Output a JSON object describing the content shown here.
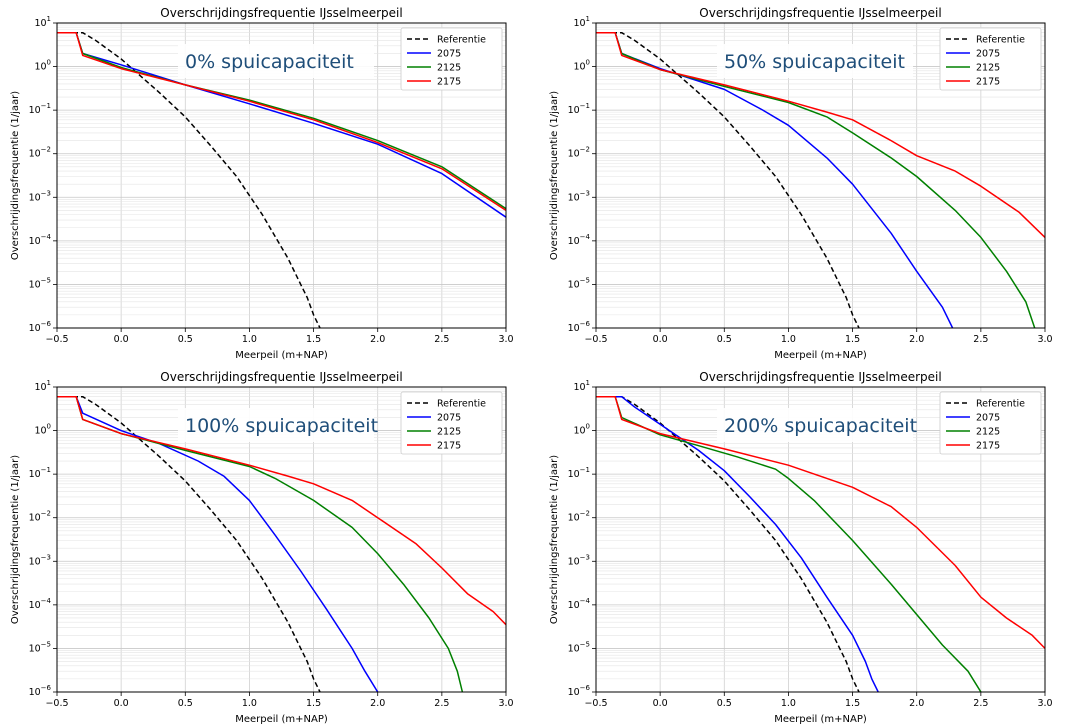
{
  "figure": {
    "panels": [
      {
        "annotation": "0% spuicapaciteit"
      },
      {
        "annotation": "50% spuicapaciteit"
      },
      {
        "annotation": "100% spuicapaciteit"
      },
      {
        "annotation": "200% spuicapaciteit"
      }
    ]
  },
  "chart_data": [
    {
      "type": "line",
      "title": "Overschrijdingsfrequentie IJsselmeerpeil",
      "xlabel": "Meerpeil (m+NAP)",
      "ylabel": "Overschrijdingsfrequentie (1/jaar)",
      "xlim": [
        -0.5,
        3.0
      ],
      "ylim": [
        1e-06,
        10
      ],
      "yscale": "log",
      "grid": true,
      "legend": "top-right",
      "annotation": "0% spuicapaciteit",
      "series": [
        {
          "name": "Referentie",
          "color": "#000000",
          "dash": "dashed",
          "x": [
            -0.5,
            -0.3,
            -0.2,
            0,
            0.3,
            0.5,
            0.7,
            0.9,
            1.1,
            1.3,
            1.4,
            1.45,
            1.5,
            1.55
          ],
          "y": [
            6,
            6,
            4,
            1.5,
            0.25,
            0.07,
            0.015,
            0.003,
            0.0004,
            4e-05,
            1e-05,
            5e-06,
            2e-06,
            1e-06
          ]
        },
        {
          "name": "2075",
          "color": "#0000ff",
          "dash": "solid",
          "x": [
            -0.5,
            -0.35,
            -0.3,
            0,
            0.5,
            1.0,
            1.5,
            2.0,
            2.5,
            3.0
          ],
          "y": [
            6,
            6,
            2,
            1.1,
            0.38,
            0.14,
            0.05,
            0.0165,
            0.0035,
            0.00035
          ]
        },
        {
          "name": "2125",
          "color": "#008000",
          "dash": "solid",
          "x": [
            -0.5,
            -0.35,
            -0.3,
            0,
            0.5,
            1.0,
            1.5,
            2.0,
            2.5,
            3.0
          ],
          "y": [
            6,
            6,
            2,
            0.95,
            0.38,
            0.17,
            0.065,
            0.02,
            0.005,
            0.00055
          ]
        },
        {
          "name": "2175",
          "color": "#ff0000",
          "dash": "solid",
          "x": [
            -0.5,
            -0.35,
            -0.3,
            0,
            0.5,
            1.0,
            1.5,
            2.0,
            2.5,
            3.0
          ],
          "y": [
            6,
            6,
            1.8,
            0.9,
            0.38,
            0.16,
            0.06,
            0.018,
            0.0045,
            0.0005
          ]
        }
      ]
    },
    {
      "type": "line",
      "title": "Overschrijdingsfrequentie IJsselmeerpeil",
      "xlabel": "Meerpeil (m+NAP)",
      "ylabel": "Overschrijdingsfrequentie (1/jaar)",
      "xlim": [
        -0.5,
        3.0
      ],
      "ylim": [
        1e-06,
        10
      ],
      "yscale": "log",
      "grid": true,
      "legend": "top-right",
      "annotation": "50% spuicapaciteit",
      "series": [
        {
          "name": "Referentie",
          "color": "#000000",
          "dash": "dashed",
          "x": [
            -0.5,
            -0.3,
            -0.2,
            0,
            0.3,
            0.5,
            0.7,
            0.9,
            1.1,
            1.3,
            1.4,
            1.45,
            1.5,
            1.55
          ],
          "y": [
            6,
            6,
            4,
            1.5,
            0.25,
            0.07,
            0.015,
            0.003,
            0.0004,
            4e-05,
            1e-05,
            5e-06,
            2e-06,
            1e-06
          ]
        },
        {
          "name": "2075",
          "color": "#0000ff",
          "dash": "solid",
          "x": [
            -0.5,
            -0.35,
            -0.3,
            0,
            0.5,
            0.8,
            1.0,
            1.3,
            1.5,
            1.8,
            2.0,
            2.2,
            2.28
          ],
          "y": [
            6,
            6,
            2,
            0.9,
            0.3,
            0.1,
            0.045,
            0.008,
            0.002,
            0.00015,
            2e-05,
            3e-06,
            1e-06
          ]
        },
        {
          "name": "2125",
          "color": "#008000",
          "dash": "solid",
          "x": [
            -0.5,
            -0.35,
            -0.3,
            0,
            0.5,
            1.0,
            1.3,
            1.5,
            1.8,
            2.0,
            2.3,
            2.5,
            2.7,
            2.85,
            2.92
          ],
          "y": [
            6,
            6,
            2,
            0.85,
            0.35,
            0.15,
            0.07,
            0.03,
            0.008,
            0.003,
            0.0005,
            0.00012,
            2e-05,
            4e-06,
            1e-06
          ]
        },
        {
          "name": "2175",
          "color": "#ff0000",
          "dash": "solid",
          "x": [
            -0.5,
            -0.35,
            -0.3,
            0,
            0.5,
            1.0,
            1.3,
            1.5,
            1.8,
            2.0,
            2.3,
            2.5,
            2.8,
            3.0
          ],
          "y": [
            6,
            6,
            1.8,
            0.85,
            0.38,
            0.16,
            0.09,
            0.06,
            0.02,
            0.009,
            0.004,
            0.0018,
            0.00045,
            0.00012
          ]
        }
      ]
    },
    {
      "type": "line",
      "title": "Overschrijdingsfrequentie IJsselmeerpeil",
      "xlabel": "Meerpeil (m+NAP)",
      "ylabel": "Overschrijdingsfrequentie (1/jaar)",
      "xlim": [
        -0.5,
        3.0
      ],
      "ylim": [
        1e-06,
        10
      ],
      "yscale": "log",
      "grid": true,
      "legend": "top-right",
      "annotation": "100% spuicapaciteit",
      "series": [
        {
          "name": "Referentie",
          "color": "#000000",
          "dash": "dashed",
          "x": [
            -0.5,
            -0.3,
            -0.2,
            0,
            0.3,
            0.5,
            0.7,
            0.9,
            1.1,
            1.3,
            1.4,
            1.45,
            1.5,
            1.55
          ],
          "y": [
            6,
            6,
            4,
            1.5,
            0.25,
            0.07,
            0.015,
            0.003,
            0.0004,
            4e-05,
            1e-05,
            5e-06,
            2e-06,
            1e-06
          ]
        },
        {
          "name": "2075",
          "color": "#0000ff",
          "dash": "solid",
          "x": [
            -0.5,
            -0.4,
            -0.35,
            -0.3,
            0,
            0.3,
            0.6,
            0.8,
            1.0,
            1.2,
            1.4,
            1.6,
            1.8,
            1.9,
            2.0
          ],
          "y": [
            6,
            6,
            6,
            2.5,
            1,
            0.5,
            0.2,
            0.09,
            0.025,
            0.004,
            0.0006,
            8e-05,
            1e-05,
            3e-06,
            1e-06
          ]
        },
        {
          "name": "2125",
          "color": "#008000",
          "dash": "solid",
          "x": [
            -0.5,
            -0.35,
            -0.3,
            0,
            0.5,
            1.0,
            1.2,
            1.5,
            1.8,
            2.0,
            2.2,
            2.4,
            2.55,
            2.62,
            2.66
          ],
          "y": [
            6,
            6,
            1.8,
            0.85,
            0.35,
            0.15,
            0.08,
            0.025,
            0.006,
            0.0015,
            0.0003,
            5e-05,
            1e-05,
            3e-06,
            1e-06
          ]
        },
        {
          "name": "2175",
          "color": "#ff0000",
          "dash": "solid",
          "x": [
            -0.5,
            -0.35,
            -0.3,
            0,
            0.5,
            1.0,
            1.3,
            1.5,
            1.8,
            2.0,
            2.3,
            2.5,
            2.7,
            2.9,
            3.0
          ],
          "y": [
            6,
            6,
            1.8,
            0.85,
            0.38,
            0.16,
            0.09,
            0.06,
            0.025,
            0.01,
            0.0025,
            0.0007,
            0.00018,
            7e-05,
            3.5e-05
          ]
        }
      ]
    },
    {
      "type": "line",
      "title": "Overschrijdingsfrequentie IJsselmeerpeil",
      "xlabel": "Meerpeil (m+NAP)",
      "ylabel": "Overschrijdingsfrequentie (1/jaar)",
      "xlim": [
        -0.5,
        3.0
      ],
      "ylim": [
        1e-06,
        10
      ],
      "yscale": "log",
      "grid": true,
      "legend": "top-right",
      "annotation": "200% spuicapaciteit",
      "series": [
        {
          "name": "Referentie",
          "color": "#000000",
          "dash": "dashed",
          "x": [
            -0.5,
            -0.3,
            -0.2,
            0,
            0.3,
            0.5,
            0.7,
            0.9,
            1.1,
            1.3,
            1.4,
            1.45,
            1.5,
            1.55
          ],
          "y": [
            6,
            6,
            4,
            1.5,
            0.25,
            0.07,
            0.015,
            0.003,
            0.0004,
            4e-05,
            1e-05,
            5e-06,
            2e-06,
            1e-06
          ]
        },
        {
          "name": "2075",
          "color": "#0000ff",
          "dash": "solid",
          "x": [
            -0.5,
            -0.4,
            -0.3,
            -0.2,
            0,
            0.3,
            0.5,
            0.7,
            0.9,
            1.1,
            1.3,
            1.5,
            1.6,
            1.65,
            1.7
          ],
          "y": [
            6,
            6,
            6,
            3.5,
            1.4,
            0.35,
            0.12,
            0.03,
            0.007,
            0.0012,
            0.00015,
            2e-05,
            5e-06,
            2e-06,
            1e-06
          ]
        },
        {
          "name": "2125",
          "color": "#008000",
          "dash": "solid",
          "x": [
            -0.5,
            -0.35,
            -0.3,
            0,
            0.3,
            0.6,
            0.9,
            1.0,
            1.2,
            1.5,
            1.8,
            2.0,
            2.2,
            2.4,
            2.5
          ],
          "y": [
            6,
            6,
            2,
            0.8,
            0.45,
            0.25,
            0.13,
            0.08,
            0.025,
            0.003,
            0.0003,
            6e-05,
            1.2e-05,
            3e-06,
            1e-06
          ]
        },
        {
          "name": "2175",
          "color": "#ff0000",
          "dash": "solid",
          "x": [
            -0.5,
            -0.35,
            -0.3,
            0,
            0.5,
            1.0,
            1.3,
            1.5,
            1.8,
            2.0,
            2.3,
            2.5,
            2.7,
            2.9,
            3.0
          ],
          "y": [
            6,
            6,
            1.8,
            0.85,
            0.38,
            0.16,
            0.08,
            0.05,
            0.018,
            0.006,
            0.0008,
            0.00015,
            5e-05,
            2e-05,
            1e-05
          ]
        }
      ]
    }
  ]
}
